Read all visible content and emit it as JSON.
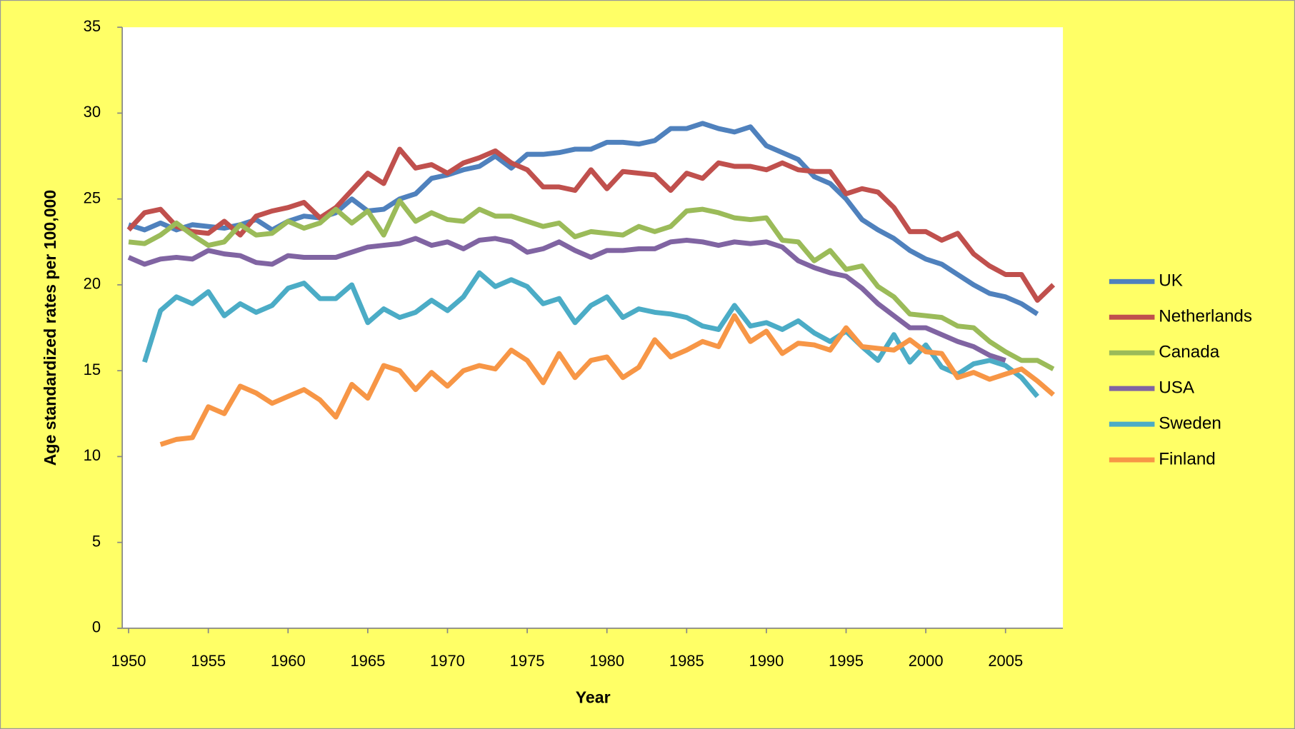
{
  "chart_data": {
    "type": "line",
    "x_label": "Year",
    "y_label": "Age standardized rates per 100,000",
    "x": [
      1950,
      1951,
      1952,
      1953,
      1954,
      1955,
      1956,
      1957,
      1958,
      1959,
      1960,
      1961,
      1962,
      1963,
      1964,
      1965,
      1966,
      1967,
      1968,
      1969,
      1970,
      1971,
      1972,
      1973,
      1974,
      1975,
      1976,
      1977,
      1978,
      1979,
      1980,
      1981,
      1982,
      1983,
      1984,
      1985,
      1986,
      1987,
      1988,
      1989,
      1990,
      1991,
      1992,
      1993,
      1994,
      1995,
      1996,
      1997,
      1998,
      1999,
      2000,
      2001,
      2002,
      2003,
      2004,
      2005,
      2006,
      2007,
      2008
    ],
    "xlim": [
      1949.6,
      2008.6
    ],
    "xticks": [
      1950,
      1955,
      1960,
      1965,
      1970,
      1975,
      1980,
      1985,
      1990,
      1995,
      2000,
      2005
    ],
    "ylim": [
      0,
      35
    ],
    "yticks": [
      0,
      5,
      10,
      15,
      20,
      25,
      30,
      35
    ],
    "series": [
      {
        "name": "UK",
        "color": "#4f81bd",
        "values": [
          23.5,
          23.2,
          23.6,
          23.2,
          23.5,
          23.4,
          23.3,
          23.5,
          23.8,
          23.2,
          23.7,
          24.0,
          23.9,
          24.2,
          25.0,
          24.3,
          24.4,
          25.0,
          25.3,
          26.2,
          26.4,
          26.7,
          26.9,
          27.5,
          26.8,
          27.6,
          27.6,
          27.7,
          27.9,
          27.9,
          28.3,
          28.3,
          28.2,
          28.4,
          29.1,
          29.1,
          29.4,
          29.1,
          28.9,
          29.2,
          28.1,
          27.7,
          27.3,
          26.3,
          25.9,
          25.0,
          23.8,
          23.2,
          22.7,
          22.0,
          21.5,
          21.2,
          20.6,
          20.0,
          19.5,
          19.3,
          18.9,
          18.3,
          null
        ]
      },
      {
        "name": "Netherlands",
        "color": "#c0504d",
        "values": [
          23.2,
          24.2,
          24.4,
          23.4,
          23.1,
          23.0,
          23.7,
          22.9,
          24.0,
          24.3,
          24.5,
          24.8,
          23.9,
          24.5,
          25.5,
          26.5,
          25.9,
          27.9,
          26.8,
          27.0,
          26.5,
          27.1,
          27.4,
          27.8,
          27.1,
          26.7,
          25.7,
          25.7,
          25.5,
          26.7,
          25.6,
          26.6,
          26.5,
          26.4,
          25.5,
          26.5,
          26.2,
          27.1,
          26.9,
          26.9,
          26.7,
          27.1,
          26.7,
          26.6,
          26.6,
          25.3,
          25.6,
          25.4,
          24.5,
          23.1,
          23.1,
          22.6,
          23.0,
          21.8,
          21.1,
          20.6,
          20.6,
          19.1,
          20.0
        ]
      },
      {
        "name": "Canada",
        "color": "#9bbb59",
        "values": [
          22.5,
          22.4,
          22.9,
          23.6,
          22.9,
          22.3,
          22.5,
          23.5,
          22.9,
          23.0,
          23.7,
          23.3,
          23.6,
          24.4,
          23.6,
          24.3,
          22.9,
          24.9,
          23.7,
          24.2,
          23.8,
          23.7,
          24.4,
          24.0,
          24.0,
          23.7,
          23.4,
          23.6,
          22.8,
          23.1,
          23.0,
          22.9,
          23.4,
          23.1,
          23.4,
          24.3,
          24.4,
          24.2,
          23.9,
          23.8,
          23.9,
          22.6,
          22.5,
          21.4,
          22.0,
          20.9,
          21.1,
          19.9,
          19.3,
          18.3,
          18.2,
          18.1,
          17.6,
          17.5,
          16.7,
          16.1,
          15.6,
          15.6,
          15.1
        ]
      },
      {
        "name": "USA",
        "color": "#8064a2",
        "values": [
          21.6,
          21.2,
          21.5,
          21.6,
          21.5,
          22.0,
          21.8,
          21.7,
          21.3,
          21.2,
          21.7,
          21.6,
          21.6,
          21.6,
          21.9,
          22.2,
          22.3,
          22.4,
          22.7,
          22.3,
          22.5,
          22.1,
          22.6,
          22.7,
          22.5,
          21.9,
          22.1,
          22.5,
          22.0,
          21.6,
          22.0,
          22.0,
          22.1,
          22.1,
          22.5,
          22.6,
          22.5,
          22.3,
          22.5,
          22.4,
          22.5,
          22.2,
          21.4,
          21.0,
          20.7,
          20.5,
          19.8,
          18.9,
          18.2,
          17.5,
          17.5,
          17.1,
          16.7,
          16.4,
          15.9,
          15.6,
          null,
          null,
          null
        ]
      },
      {
        "name": "Sweden",
        "color": "#4bacc6",
        "values": [
          null,
          15.5,
          18.5,
          19.3,
          18.9,
          19.6,
          18.2,
          18.9,
          18.4,
          18.8,
          19.8,
          20.1,
          19.2,
          19.2,
          20.0,
          17.8,
          18.6,
          18.1,
          18.4,
          19.1,
          18.5,
          19.3,
          20.7,
          19.9,
          20.3,
          19.9,
          18.9,
          19.2,
          17.8,
          18.8,
          19.3,
          18.1,
          18.6,
          18.4,
          18.3,
          18.1,
          17.6,
          17.4,
          18.8,
          17.6,
          17.8,
          17.4,
          17.9,
          17.2,
          16.7,
          17.3,
          16.4,
          15.6,
          17.1,
          15.5,
          16.5,
          15.2,
          14.8,
          15.4,
          15.6,
          15.3,
          14.6,
          13.5,
          null
        ]
      },
      {
        "name": "Finland",
        "color": "#f79646",
        "values": [
          null,
          null,
          10.7,
          11.0,
          11.1,
          12.9,
          12.5,
          14.1,
          13.7,
          13.1,
          13.5,
          13.9,
          13.3,
          12.3,
          14.2,
          13.4,
          15.3,
          15.0,
          13.9,
          14.9,
          14.1,
          15.0,
          15.3,
          15.1,
          16.2,
          15.6,
          14.3,
          16.0,
          14.6,
          15.6,
          15.8,
          14.6,
          15.2,
          16.8,
          15.8,
          16.2,
          16.7,
          16.4,
          18.2,
          16.7,
          17.3,
          16.0,
          16.6,
          16.5,
          16.2,
          17.5,
          16.4,
          16.3,
          16.2,
          16.8,
          16.1,
          16.0,
          14.6,
          14.9,
          14.5,
          14.8,
          15.1,
          14.4,
          13.6
        ]
      }
    ]
  }
}
